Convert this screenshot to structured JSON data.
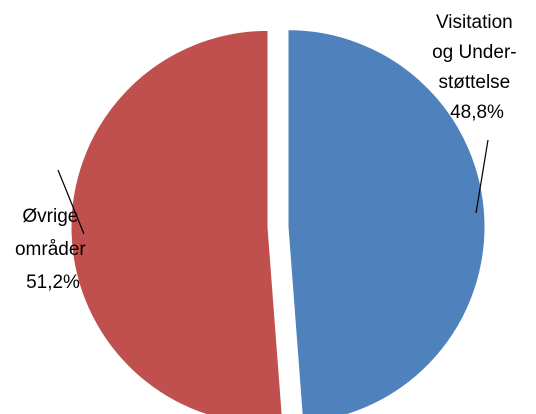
{
  "chart_data": {
    "type": "pie",
    "slices": [
      {
        "label_lines": [
          "Visitation",
          "og Under-",
          "støttelse"
        ],
        "value_text": "48,8%",
        "value": 48.8,
        "color": "#4f81bd"
      },
      {
        "label_lines": [
          "Øvrige",
          "områder"
        ],
        "value_text": "51,2%",
        "value": 51.2,
        "color": "#c0504d"
      }
    ]
  }
}
